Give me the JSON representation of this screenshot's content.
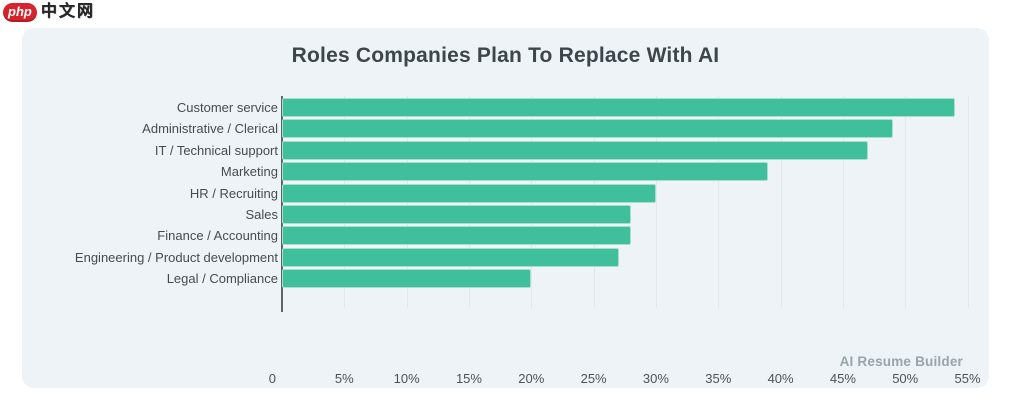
{
  "logo": {
    "badge_text": "php",
    "site_name": "中文网",
    "badge_color": "#d7242c"
  },
  "card": {
    "background": "#edf3f6"
  },
  "chart_data": {
    "type": "bar",
    "orientation": "horizontal",
    "title": "Roles Companies Plan To Replace With AI",
    "categories": [
      "Customer service",
      "Administrative / Clerical",
      "IT / Technical support",
      "Marketing",
      "HR / Recruiting",
      "Sales",
      "Finance / Accounting",
      "Engineering / Product development",
      "Legal / Compliance"
    ],
    "values": [
      54,
      49,
      47,
      39,
      30,
      28,
      28,
      27,
      20
    ],
    "unit": "%",
    "xlabel": "",
    "ylabel": "",
    "xlim": [
      0,
      56.4
    ],
    "x_ticks": [
      {
        "label": "0",
        "value": 0
      },
      {
        "label": "5%",
        "value": 5
      },
      {
        "label": "10%",
        "value": 10
      },
      {
        "label": "15%",
        "value": 15
      },
      {
        "label": "20%",
        "value": 20
      },
      {
        "label": "25%",
        "value": 25
      },
      {
        "label": "30%",
        "value": 30
      },
      {
        "label": "35%",
        "value": 35
      },
      {
        "label": "40%",
        "value": 40
      },
      {
        "label": "45%",
        "value": 45
      },
      {
        "label": "50%",
        "value": 50
      },
      {
        "label": "55%",
        "value": 55
      }
    ],
    "grid": true,
    "legend": false,
    "bar_color": "#3fbf9b",
    "bar_border_color": "#a7dfcc",
    "gridline_color": "#dfe9ec",
    "axis_line_color": "#5d656b",
    "source": "AI Resume Builder"
  }
}
